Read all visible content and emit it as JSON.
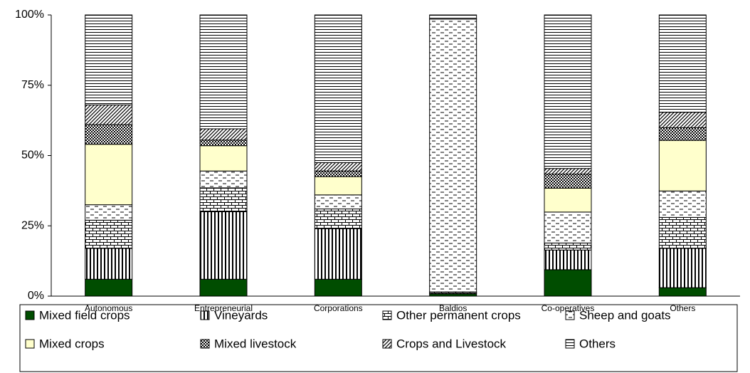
{
  "chart_data": {
    "type": "stacked_bar",
    "categories": [
      "Autonomous",
      "Entrepreneurial",
      "Corporations",
      "Baldios",
      "Co-operatives",
      "Others"
    ],
    "series": [
      {
        "name": "Mixed field crops",
        "color": "#004d00",
        "pattern": "solid",
        "values": [
          6,
          6,
          6,
          0.8,
          9.4,
          3
        ]
      },
      {
        "name": "Vineyards",
        "color": "#000000",
        "pattern": "vertical",
        "values": [
          11,
          24,
          18,
          0.3,
          7,
          14
        ]
      },
      {
        "name": "Other permanent crops",
        "color": "#000000",
        "pattern": "brick",
        "values": [
          10,
          8.5,
          7,
          0.4,
          2.5,
          11
        ]
      },
      {
        "name": "Sheep and goats",
        "color": "#000000",
        "pattern": "dashes",
        "values": [
          5.5,
          6,
          5,
          97,
          11,
          9.4
        ]
      },
      {
        "name": "Mixed crops",
        "color": "#ffffcc",
        "pattern": "solid",
        "values": [
          21.5,
          9,
          6.5,
          0,
          8.5,
          18
        ]
      },
      {
        "name": "Mixed livestock",
        "color": "#000000",
        "pattern": "checker",
        "values": [
          7,
          2,
          2,
          0,
          5,
          4.5
        ]
      },
      {
        "name": "Crops and Livestock",
        "color": "#000000",
        "pattern": "diagonal",
        "values": [
          7,
          4,
          3,
          0,
          2,
          5.5
        ]
      },
      {
        "name": "Others",
        "color": "#000000",
        "pattern": "hlines",
        "values": [
          32,
          40.5,
          52.5,
          1.5,
          54.6,
          34.6
        ]
      }
    ],
    "ylim": [
      0,
      100
    ],
    "yticks": [
      {
        "value": 0,
        "label": "0%"
      },
      {
        "value": 25,
        "label": "25%"
      },
      {
        "value": 50,
        "label": "50%"
      },
      {
        "value": 75,
        "label": "75%"
      },
      {
        "value": 100,
        "label": "100%"
      }
    ],
    "legend": "bottom"
  }
}
